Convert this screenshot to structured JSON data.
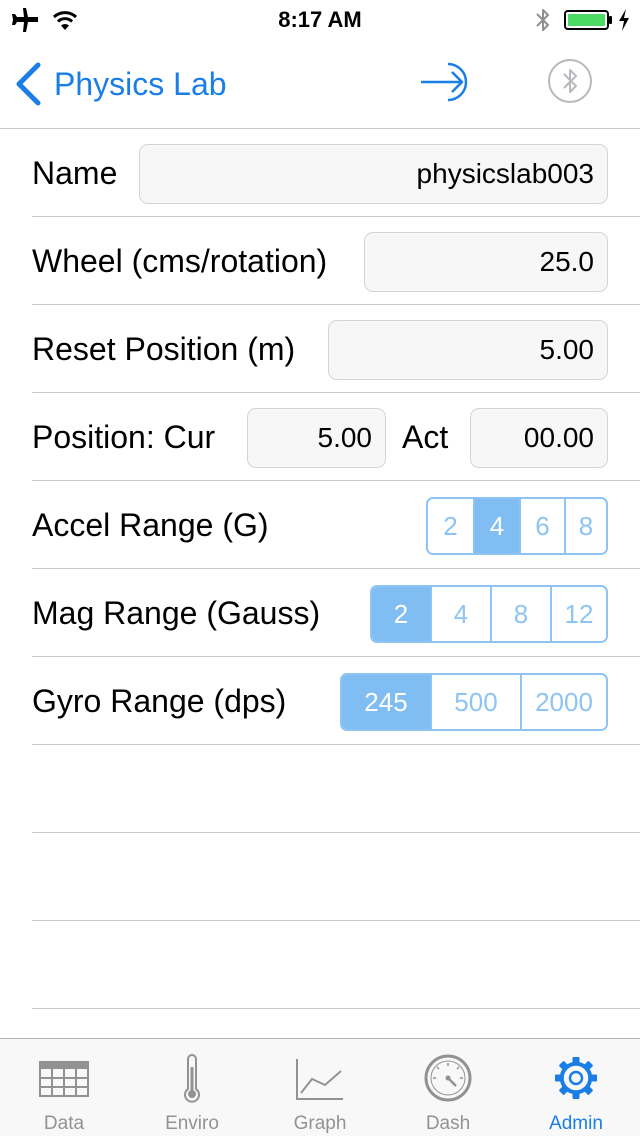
{
  "status_bar": {
    "time": "8:17 AM"
  },
  "nav": {
    "back_label": "Physics Lab"
  },
  "form": {
    "name": {
      "label": "Name",
      "value": "physicslab003"
    },
    "wheel": {
      "label": "Wheel (cms/rotation)",
      "value": "25.0"
    },
    "reset": {
      "label": "Reset Position (m)",
      "value": "5.00"
    },
    "position": {
      "label": "Position: Cur",
      "cur_value": "5.00",
      "act_label": "Act",
      "act_value": "00.00"
    },
    "accel": {
      "label": "Accel Range (G)",
      "options": [
        "2",
        "4",
        "6",
        "8"
      ],
      "selected": "4"
    },
    "mag": {
      "label": "Mag Range (Gauss)",
      "options": [
        "2",
        "4",
        "8",
        "12"
      ],
      "selected": "2"
    },
    "gyro": {
      "label": "Gyro Range (dps)",
      "options": [
        "245",
        "500",
        "2000"
      ],
      "selected": "245"
    }
  },
  "tabs": [
    {
      "label": "Data",
      "icon": "table-icon",
      "active": false
    },
    {
      "label": "Enviro",
      "icon": "thermometer-icon",
      "active": false
    },
    {
      "label": "Graph",
      "icon": "line-graph-icon",
      "active": false
    },
    {
      "label": "Dash",
      "icon": "gauge-icon",
      "active": false
    },
    {
      "label": "Admin",
      "icon": "gear-icon",
      "active": true
    }
  ],
  "colors": {
    "accent": "#1b7ee6",
    "segment": "#8ec4f4",
    "segment_selected": "#7fbdf2",
    "battery": "#4cd964"
  }
}
